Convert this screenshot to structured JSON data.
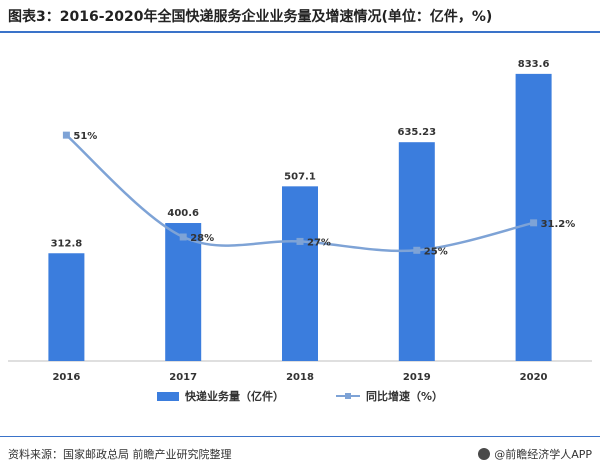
{
  "title": "图表3：2016-2020年全国快递服务企业业务量及增速情况(单位：亿件，%)",
  "footer": {
    "source": "资料来源：国家邮政总局 前瞻产业研究院整理",
    "brand": "@前瞻经济学人APP"
  },
  "colors": {
    "bar": "#3b7ddd",
    "line": "#7ea3d6",
    "rule": "#3a73c9"
  },
  "chart_data": {
    "type": "bar",
    "categories": [
      "2016",
      "2017",
      "2018",
      "2019",
      "2020"
    ],
    "series": [
      {
        "name": "快递业务量（亿件）",
        "type": "bar",
        "axis": "left",
        "values": [
          312.8,
          400.6,
          507.1,
          635.23,
          833.6
        ],
        "labels": [
          "312.8",
          "400.6",
          "507.1",
          "635.23",
          "833.6"
        ]
      },
      {
        "name": "同比增速（%）",
        "type": "line",
        "axis": "right",
        "smooth": true,
        "values": [
          51,
          28,
          27,
          25,
          31.2
        ],
        "labels": [
          "51%",
          "28%",
          "27%",
          "25%",
          "31.2%"
        ]
      }
    ],
    "ylim_left": [
      0,
      900
    ],
    "ylim_right": [
      0,
      70
    ],
    "grid": false,
    "legend": "bottom"
  }
}
